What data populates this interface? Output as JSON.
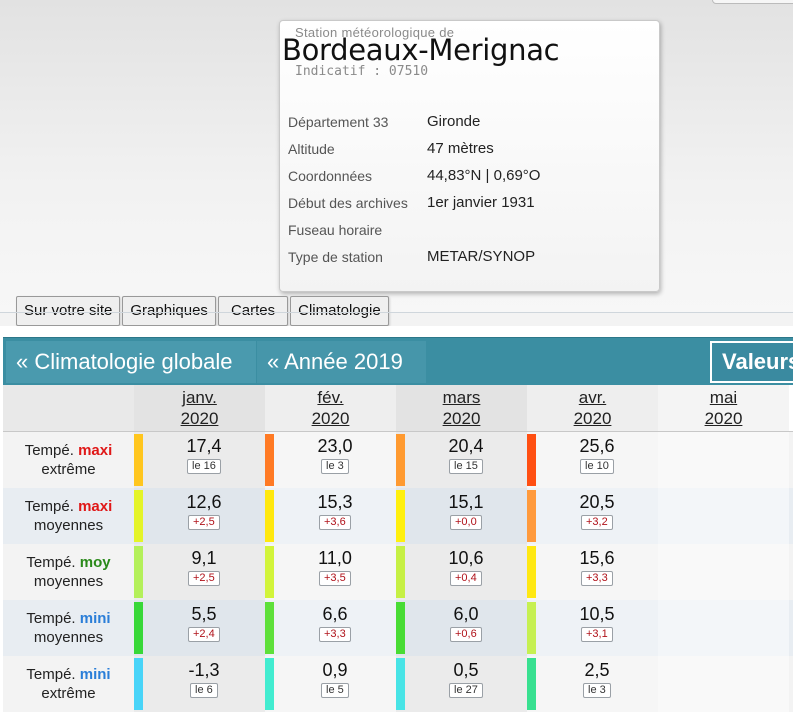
{
  "station": {
    "subtitle": "Station météorologique de",
    "name": "Bordeaux-Merignac",
    "code": "Indicatif : 07510",
    "info": [
      {
        "label": "Département 33",
        "value": "Gironde"
      },
      {
        "label": "Altitude",
        "value": "47 mètres"
      },
      {
        "label": "Coordonnées",
        "value": "44,83°N | 0,69°O"
      },
      {
        "label": "Début des archives",
        "value": "1er janvier 1931"
      },
      {
        "label": "Fuseau horaire",
        "value": ""
      },
      {
        "label": "Type de station",
        "value": "METAR/SYNOP"
      }
    ]
  },
  "tabs": [
    "Sur votre site",
    "Graphiques",
    "Cartes",
    "Climatologie"
  ],
  "nav": {
    "back_global": "« Climatologie globale",
    "back_year": "« Année 2019",
    "values": "Valeurs"
  },
  "months": [
    {
      "name": "janv.",
      "year": "2020"
    },
    {
      "name": "fév.",
      "year": "2020"
    },
    {
      "name": "mars",
      "year": "2020"
    },
    {
      "name": "avr.",
      "year": "2020"
    },
    {
      "name": "mai",
      "year": "2020"
    }
  ],
  "rows": [
    {
      "prefix": "Tempé.",
      "keyword": "maxi",
      "keyword_color": "red",
      "suffix": "extrême"
    },
    {
      "prefix": "Tempé.",
      "keyword": "maxi",
      "keyword_color": "red",
      "suffix": "moyennes"
    },
    {
      "prefix": "Tempé.",
      "keyword": "moy",
      "keyword_color": "green",
      "suffix": "moyennes"
    },
    {
      "prefix": "Tempé.",
      "keyword": "mini",
      "keyword_color": "blue",
      "suffix": "moyennes"
    },
    {
      "prefix": "Tempé.",
      "keyword": "mini",
      "keyword_color": "blue",
      "suffix": "extrême"
    }
  ],
  "cells": [
    [
      {
        "value": "17,4",
        "badge": "le 16",
        "kind": "day",
        "color": "#ffc61e"
      },
      {
        "value": "23,0",
        "badge": "le 3",
        "kind": "day",
        "color": "#ff7a24"
      },
      {
        "value": "20,4",
        "badge": "le 15",
        "kind": "day",
        "color": "#ff9a30"
      },
      {
        "value": "25,6",
        "badge": "le 10",
        "kind": "day",
        "color": "#ff4f12"
      }
    ],
    [
      {
        "value": "12,6",
        "badge": "+2,5",
        "kind": "anom",
        "color": "#e4f428"
      },
      {
        "value": "15,3",
        "badge": "+3,6",
        "kind": "anom",
        "color": "#ffe80e"
      },
      {
        "value": "15,1",
        "badge": "+0,0",
        "kind": "anom",
        "color": "#fff00e"
      },
      {
        "value": "20,5",
        "badge": "+3,2",
        "kind": "anom",
        "color": "#ff9a3c"
      }
    ],
    [
      {
        "value": "9,1",
        "badge": "+2,5",
        "kind": "anom",
        "color": "#b4f05a"
      },
      {
        "value": "11,0",
        "badge": "+3,5",
        "kind": "anom",
        "color": "#d2f43a"
      },
      {
        "value": "10,6",
        "badge": "+0,4",
        "kind": "anom",
        "color": "#c6f044"
      },
      {
        "value": "15,6",
        "badge": "+3,3",
        "kind": "anom",
        "color": "#ffe812"
      }
    ],
    [
      {
        "value": "5,5",
        "badge": "+2,4",
        "kind": "anom",
        "color": "#38d838"
      },
      {
        "value": "6,6",
        "badge": "+3,3",
        "kind": "anom",
        "color": "#5ee03a"
      },
      {
        "value": "6,0",
        "badge": "+0,6",
        "kind": "anom",
        "color": "#48dc34"
      },
      {
        "value": "10,5",
        "badge": "+3,1",
        "kind": "anom",
        "color": "#c6f052"
      }
    ],
    [
      {
        "value": "-1,3",
        "badge": "le 6",
        "kind": "day",
        "color": "#48d4f8"
      },
      {
        "value": "0,9",
        "badge": "le 5",
        "kind": "day",
        "color": "#42ecd0"
      },
      {
        "value": "0,5",
        "badge": "le 27",
        "kind": "day",
        "color": "#48e4e6"
      },
      {
        "value": "2,5",
        "badge": "le 3",
        "kind": "day",
        "color": "#38e090"
      }
    ]
  ]
}
